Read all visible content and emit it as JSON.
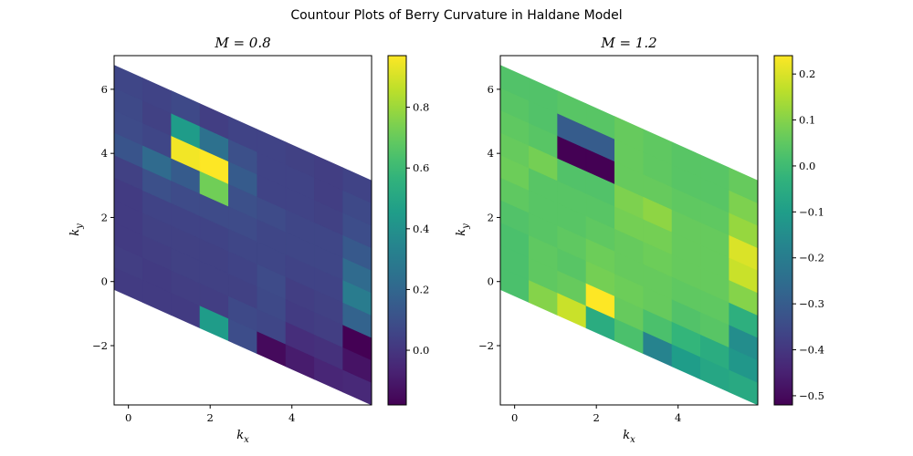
{
  "suptitle": "Countour Plots of Berry Curvature in Haldane Model",
  "chart_data": [
    {
      "type": "heatmap",
      "title": "M = 0.8",
      "xlabel": "k_x",
      "ylabel": "k_y",
      "xlim": [
        -0.35,
        5.95
      ],
      "ylim": [
        -3.85,
        7.05
      ],
      "xticks": [
        0,
        2,
        4
      ],
      "yticks": [
        -2,
        0,
        2,
        4,
        6
      ],
      "colormap": "viridis",
      "colorbar": {
        "vmin": -0.18,
        "vmax": 0.97,
        "ticks": [
          0.0,
          0.2,
          0.4,
          0.6,
          0.8
        ]
      },
      "lattice": {
        "x0": -0.35,
        "dx": 0.7,
        "y0": -0.25,
        "dy": 0.7,
        "shear_per_col": -0.4,
        "cols": 9,
        "rows": 10
      },
      "values": [
        [
          0.02,
          0.03,
          0.02,
          0.02,
          0.02,
          0.04,
          0.12,
          0.08,
          0.07,
          0.06
        ],
        [
          0.02,
          0.02,
          0.03,
          0.04,
          0.05,
          0.1,
          0.22,
          0.06,
          0.04,
          0.05
        ],
        [
          0.02,
          0.03,
          0.04,
          0.04,
          0.05,
          0.08,
          0.15,
          0.95,
          0.45,
          0.07
        ],
        [
          0.45,
          0.03,
          0.04,
          0.04,
          0.05,
          0.08,
          0.72,
          0.97,
          0.25,
          0.03
        ],
        [
          0.09,
          0.07,
          0.04,
          0.05,
          0.06,
          0.08,
          0.1,
          0.15,
          0.1,
          0.05
        ],
        [
          -0.15,
          0.06,
          0.07,
          0.08,
          0.06,
          0.06,
          0.08,
          0.05,
          0.05,
          0.05
        ],
        [
          -0.09,
          -0.03,
          0.02,
          0.03,
          0.05,
          0.06,
          0.06,
          0.05,
          0.05,
          0.04
        ],
        [
          -0.06,
          -0.02,
          0.03,
          0.04,
          0.05,
          0.06,
          0.06,
          0.04,
          0.03,
          0.03
        ],
        [
          -0.05,
          -0.12,
          -0.18,
          0.18,
          0.3,
          0.22,
          0.14,
          0.09,
          0.07,
          0.05
        ]
      ]
    },
    {
      "type": "heatmap",
      "title": "M = 1.2",
      "xlabel": "k_x",
      "ylabel": "k_y",
      "xlim": [
        -0.35,
        5.95
      ],
      "ylim": [
        -3.85,
        7.05
      ],
      "xticks": [
        0,
        2,
        4
      ],
      "yticks": [
        -2,
        0,
        2,
        4,
        6
      ],
      "colormap": "viridis",
      "colorbar": {
        "vmin": -0.52,
        "vmax": 0.24,
        "ticks": [
          -0.5,
          -0.4,
          -0.3,
          -0.2,
          -0.1,
          0.0,
          0.1,
          0.2
        ]
      },
      "lattice": {
        "x0": -0.35,
        "dx": 0.7,
        "y0": -0.25,
        "dy": 0.7,
        "shear_per_col": -0.4,
        "cols": 9,
        "rows": 10
      },
      "values": [
        [
          0.02,
          0.02,
          0.02,
          0.03,
          0.05,
          0.07,
          0.06,
          0.05,
          0.04,
          0.03
        ],
        [
          0.1,
          0.05,
          0.05,
          0.04,
          0.04,
          0.04,
          0.08,
          0.04,
          0.03,
          0.03
        ],
        [
          0.18,
          0.06,
          0.04,
          0.05,
          0.04,
          0.04,
          0.03,
          -0.52,
          -0.3,
          0.04
        ],
        [
          -0.05,
          0.24,
          0.08,
          0.07,
          0.05,
          0.04,
          0.03,
          -0.52,
          -0.3,
          0.04
        ],
        [
          0.02,
          0.06,
          0.07,
          0.06,
          0.06,
          0.08,
          0.09,
          0.06,
          0.06,
          0.06
        ],
        [
          -0.18,
          0.02,
          0.06,
          0.06,
          0.07,
          0.08,
          0.11,
          0.06,
          0.05,
          0.05
        ],
        [
          -0.1,
          -0.02,
          0.03,
          0.05,
          0.06,
          0.06,
          0.06,
          0.05,
          0.04,
          0.04
        ],
        [
          -0.07,
          -0.05,
          0.04,
          0.05,
          0.06,
          0.06,
          0.06,
          0.05,
          0.04,
          0.04
        ],
        [
          -0.06,
          -0.12,
          -0.15,
          -0.04,
          0.1,
          0.18,
          0.2,
          0.12,
          0.09,
          0.06
        ]
      ]
    }
  ]
}
